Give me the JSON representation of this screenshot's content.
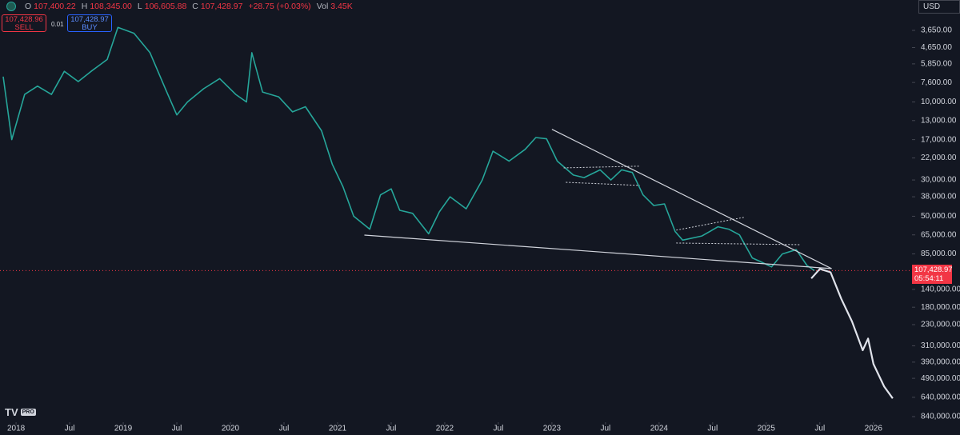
{
  "header": {
    "items": [
      {
        "label": "O",
        "value": "107,400.22"
      },
      {
        "label": "H",
        "value": "108,345.00"
      },
      {
        "label": "L",
        "value": "106,605.88"
      },
      {
        "label": "C",
        "value": "107,428.97"
      }
    ],
    "change": "+28.75 (+0.03%)",
    "volume_label": "Vol",
    "volume": "3.45K"
  },
  "trade": {
    "sell_price": "107,428.96",
    "sell": "SELL",
    "spread": "0.01",
    "buy_price": "107,428.97",
    "buy": "BUY"
  },
  "currency": "USD",
  "price_tag": {
    "price": "107,428.97",
    "countdown": "05:54:11"
  },
  "logo": {
    "mark": "TV",
    "badge": "PRO"
  },
  "chart_data": {
    "type": "line",
    "log_scale": true,
    "inverted": true,
    "xlim": [
      2017.85,
      2026.36
    ],
    "ylim": [
      3650,
      840000
    ],
    "xticks": [
      2018,
      {
        "value": 2018.5,
        "label": "Jul"
      },
      2019,
      {
        "value": 2019.5,
        "label": "Jul"
      },
      2020,
      {
        "value": 2020.5,
        "label": "Jul"
      },
      2021,
      {
        "value": 2021.5,
        "label": "Jul"
      },
      2022,
      {
        "value": 2022.5,
        "label": "Jul"
      },
      2023,
      {
        "value": 2023.5,
        "label": "Jul"
      },
      2024,
      {
        "value": 2024.5,
        "label": "Jul"
      },
      2025,
      {
        "value": 2025.5,
        "label": "Jul"
      },
      2026
    ],
    "yticks": [
      {
        "value": 3650,
        "label": "3,650.00"
      },
      {
        "value": 4650,
        "label": "4,650.00"
      },
      {
        "value": 5850,
        "label": "5,850.00"
      },
      {
        "value": 7600,
        "label": "7,600.00"
      },
      {
        "value": 10000,
        "label": "10,000.00"
      },
      {
        "value": 13000,
        "label": "13,000.00"
      },
      {
        "value": 17000,
        "label": "17,000.00"
      },
      {
        "value": 22000,
        "label": "22,000.00"
      },
      {
        "value": 30000,
        "label": "30,000.00"
      },
      {
        "value": 38000,
        "label": "38,000.00"
      },
      {
        "value": 50000,
        "label": "50,000.00"
      },
      {
        "value": 65000,
        "label": "65,000.00"
      },
      {
        "value": 85000,
        "label": "85,000.00"
      },
      {
        "value": 140000,
        "label": "140,000.00"
      },
      {
        "value": 180000,
        "label": "180,000.00"
      },
      {
        "value": 230000,
        "label": "230,000.00"
      },
      {
        "value": 310000,
        "label": "310,000.00"
      },
      {
        "value": 390000,
        "label": "390,000.00"
      },
      {
        "value": 490000,
        "label": "490,000.00"
      },
      {
        "value": 640000,
        "label": "640,000.00"
      },
      {
        "value": 840000,
        "label": "840,000.00"
      }
    ],
    "series": [
      {
        "color": "#26a69a",
        "x": [
          2017.88,
          2017.96,
          2018.08,
          2018.2,
          2018.33,
          2018.45,
          2018.58,
          2018.7,
          2018.85,
          2018.95,
          2019.1,
          2019.25,
          2019.4,
          2019.5,
          2019.6,
          2019.75,
          2019.9,
          2020.05,
          2020.15,
          2020.2,
          2020.3,
          2020.45,
          2020.58,
          2020.7,
          2020.85,
          2020.95,
          2021.05,
          2021.15,
          2021.3,
          2021.4,
          2021.5,
          2021.58,
          2021.7,
          2021.85,
          2021.95,
          2022.05,
          2022.2,
          2022.35,
          2022.45,
          2022.6,
          2022.75,
          2022.85,
          2022.95,
          2023.05,
          2023.2,
          2023.3,
          2023.45,
          2023.55,
          2023.65,
          2023.75,
          2023.85,
          2023.95,
          2024.05,
          2024.15,
          2024.22,
          2024.4,
          2024.55,
          2024.65,
          2024.75,
          2024.87,
          2024.95,
          2025.05,
          2025.15,
          2025.28,
          2025.38,
          2025.45
        ],
        "values": [
          7000,
          17000,
          9000,
          8000,
          9000,
          6500,
          7500,
          6500,
          5500,
          3500,
          3800,
          5000,
          8500,
          12000,
          10000,
          8300,
          7200,
          9000,
          10000,
          5000,
          8700,
          9300,
          11500,
          10700,
          15000,
          24000,
          33000,
          50000,
          60000,
          37000,
          34000,
          46000,
          48000,
          64000,
          47000,
          38000,
          45000,
          30000,
          20000,
          23000,
          19500,
          16500,
          16800,
          23000,
          28000,
          29000,
          26000,
          30000,
          26000,
          27000,
          37000,
          43000,
          42000,
          62000,
          70000,
          66000,
          58000,
          60000,
          65000,
          90000,
          95000,
          102000,
          85000,
          80000,
          100000,
          107428.97
        ]
      },
      {
        "color": "#e0e3eb",
        "x": [
          2025.42,
          2025.5,
          2025.6,
          2025.7,
          2025.8,
          2025.9,
          2025.95,
          2026.0,
          2026.1,
          2026.18
        ],
        "values": [
          120000,
          105000,
          110000,
          160000,
          220000,
          330000,
          280000,
          400000,
          550000,
          650000
        ]
      }
    ],
    "trendline_color": "#d1d4dc",
    "trendlines": [
      {
        "x": [
          2021.25,
          2025.61
        ],
        "y": [
          65200,
          104500
        ]
      },
      {
        "x": [
          2023.0,
          2025.61
        ],
        "y": [
          14700,
          104500
        ]
      },
      {
        "x": [
          2023.11,
          2023.82
        ],
        "y": [
          25300,
          24700
        ]
      },
      {
        "x": [
          2023.13,
          2023.82
        ],
        "y": [
          31000,
          32400
        ]
      },
      {
        "x": [
          2024.16,
          2024.79
        ],
        "y": [
          60800,
          50800
        ]
      },
      {
        "x": [
          2024.16,
          2025.31
        ],
        "y": [
          72900,
          74600
        ]
      }
    ],
    "price_line_color": "#f23645"
  }
}
